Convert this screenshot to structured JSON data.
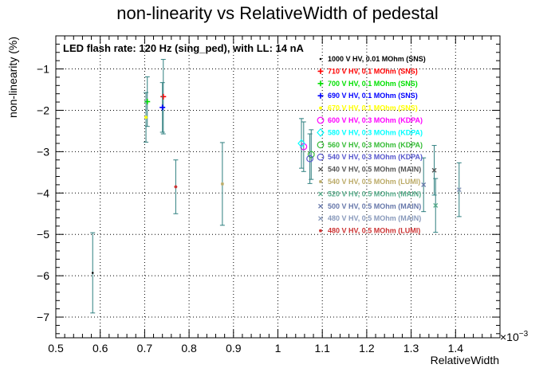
{
  "chart_data": {
    "type": "scatter",
    "title": "non-linearity vs RelativeWidth of pedestal",
    "xlabel": "RelativeWidth",
    "ylabel": "non-linearity (%)",
    "x_multiplier_label": "×10",
    "x_multiplier_exp": "−3",
    "annotation": "LED flash rate: 120 Hz  (sing_ped), with LL: 14 nA",
    "xlim": [
      0.5,
      1.5
    ],
    "ylim": [
      -7.5,
      -0.2
    ],
    "grid": true,
    "legend_position": "top-right",
    "x_ticks": [
      "0.5",
      "0.6",
      "0.7",
      "0.8",
      "0.9",
      "1",
      "1.1",
      "1.2",
      "1.3",
      "1.4"
    ],
    "y_ticks": [
      "−1",
      "−2",
      "−3",
      "−4",
      "−5",
      "−6",
      "−7"
    ],
    "errorbar_color": "#2e7f7f",
    "series": [
      {
        "name": "1000 V HV, 0.01 MOhm (SNS)",
        "color": "#000000",
        "marker": "dot",
        "points": [
          {
            "x": 0.583,
            "y": -5.93,
            "err": 0.97
          }
        ]
      },
      {
        "name": "710 V HV, 0.1 MOhm (SNS)",
        "color": "#ff0000",
        "marker": "plus",
        "points": [
          {
            "x": 0.742,
            "y": -1.67,
            "err": 0.9
          }
        ]
      },
      {
        "name": "700 V HV, 0.1 MOhm (SNS)",
        "color": "#00e000",
        "marker": "plus",
        "points": [
          {
            "x": 0.706,
            "y": -1.79,
            "err": 0.6
          }
        ]
      },
      {
        "name": "690 V HV, 0.1 MOhm (SNS)",
        "color": "#0000ff",
        "marker": "plus",
        "points": [
          {
            "x": 0.74,
            "y": -1.93,
            "err": 0.6
          }
        ]
      },
      {
        "name": "670 V HV, 0.1 MOhm (SNS)",
        "color": "#ffff00",
        "marker": "star",
        "points": [
          {
            "x": 0.703,
            "y": -2.17,
            "err": 0.6
          }
        ]
      },
      {
        "name": "600 V HV, 0.3 MOhm (KDPA)",
        "color": "#ff00ff",
        "marker": "circle",
        "points": [
          {
            "x": 1.058,
            "y": -2.88,
            "err": 0.6
          }
        ]
      },
      {
        "name": "580 V HV, 0.3 MOhm (KDPA)",
        "color": "#00ffff",
        "marker": "diamond",
        "points": [
          {
            "x": 1.053,
            "y": -2.8,
            "err": 0.6
          }
        ]
      },
      {
        "name": "560 V HV, 0.3 MOhm (KDPA)",
        "color": "#33bb33",
        "marker": "circle",
        "points": [
          {
            "x": 1.075,
            "y": -3.07,
            "err": 0.6
          }
        ]
      },
      {
        "name": "540 V HV, 0.3 MOhm (KDPA)",
        "color": "#5555cc",
        "marker": "circle",
        "points": [
          {
            "x": 1.072,
            "y": -3.17,
            "err": 0.6
          }
        ]
      },
      {
        "name": "540 V HV, 0.5 MOhm (MAIN)",
        "color": "#555555",
        "marker": "cross",
        "points": [
          {
            "x": 1.352,
            "y": -3.45,
            "err": 0.6
          }
        ]
      },
      {
        "name": "540 V HV, 0.5 MOhm (LUMI)",
        "color": "#bbaa66",
        "marker": "star",
        "points": [
          {
            "x": 0.875,
            "y": -3.78,
            "err": 1.0
          }
        ]
      },
      {
        "name": "520 V HV, 0.5 MOhm (MAIN)",
        "color": "#55aa88",
        "marker": "cross",
        "points": [
          {
            "x": 1.355,
            "y": -4.3,
            "err": 0.65
          }
        ]
      },
      {
        "name": "500 V HV, 0.5 MOhm (MAIN)",
        "color": "#6677aa",
        "marker": "cross",
        "points": [
          {
            "x": 1.328,
            "y": -3.8,
            "err": 0.65
          }
        ]
      },
      {
        "name": "480 V HV, 0.5 MOhm (MAIN)",
        "color": "#8899bb",
        "marker": "cross",
        "points": [
          {
            "x": 1.408,
            "y": -3.92,
            "err": 0.65
          }
        ]
      },
      {
        "name": "480 V HV, 0.5 MOhm (LUMI)",
        "color": "#cc3333",
        "marker": "star",
        "points": [
          {
            "x": 0.77,
            "y": -3.85,
            "err": 0.65
          }
        ]
      }
    ]
  }
}
